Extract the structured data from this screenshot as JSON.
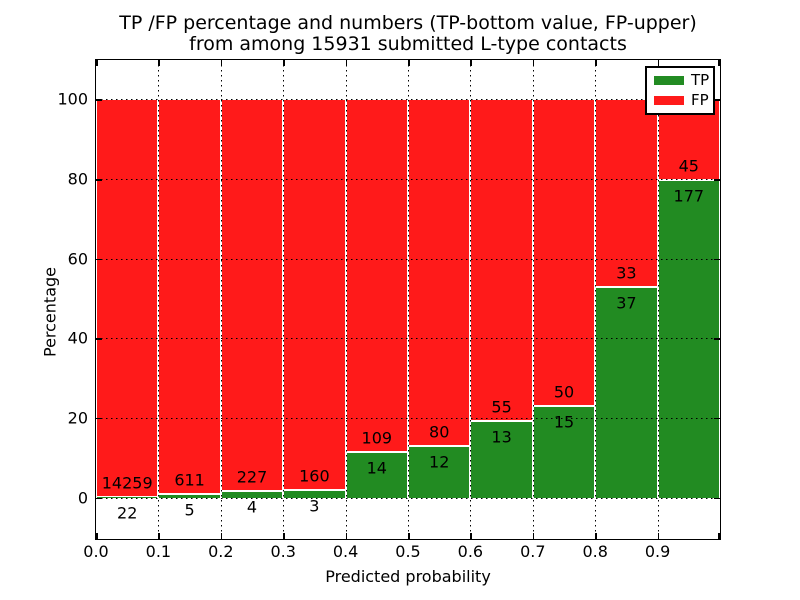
{
  "chart_data": {
    "type": "bar",
    "stacked": true,
    "normalized_to_percent": true,
    "title": "TP /FP percentage and numbers (TP-bottom value, FP-upper)",
    "subtitle": "from among 15931 submitted L-type contacts",
    "xlabel": "Predicted probability",
    "ylabel": "Percentage",
    "total_contacts": 15931,
    "bins": [
      "0.0-0.1",
      "0.1-0.2",
      "0.2-0.3",
      "0.3-0.4",
      "0.4-0.5",
      "0.5-0.6",
      "0.6-0.7",
      "0.7-0.8",
      "0.8-0.9",
      "0.9-1.0"
    ],
    "series": [
      {
        "name": "TP",
        "color": "#228B22",
        "counts": [
          22,
          5,
          4,
          3,
          14,
          12,
          13,
          15,
          37,
          177
        ]
      },
      {
        "name": "FP",
        "color": "#FF1A1A",
        "counts": [
          14259,
          611,
          227,
          160,
          109,
          80,
          55,
          50,
          33,
          45
        ]
      }
    ],
    "tp_percent": [
      0.15,
      0.81,
      1.73,
      1.84,
      11.38,
      13.04,
      19.12,
      23.08,
      52.86,
      79.73
    ],
    "bar_total_percent": 100,
    "xticks": [
      "0.0",
      "0.1",
      "0.2",
      "0.3",
      "0.4",
      "0.5",
      "0.6",
      "0.7",
      "0.8",
      "0.9"
    ],
    "yticks": [
      "0",
      "20",
      "40",
      "60",
      "80",
      "100"
    ],
    "xlim": [
      0.0,
      1.0
    ],
    "ylim": [
      -10.4,
      109.9
    ],
    "grid": "dotted, both axes, drawn over bars",
    "legend": {
      "position": "upper right",
      "entries": [
        {
          "label": "TP",
          "color": "#228B22"
        },
        {
          "label": "FP",
          "color": "#FF1A1A"
        }
      ]
    }
  }
}
